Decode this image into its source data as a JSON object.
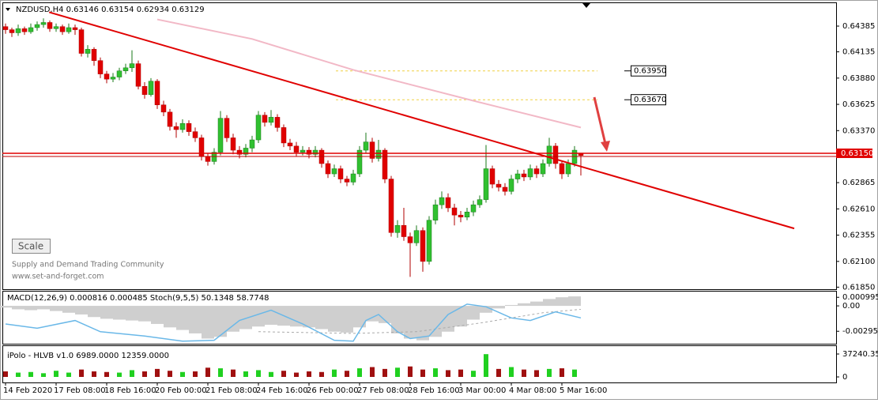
{
  "chart_data": {
    "type": "candlestick",
    "title": "NZDUSD,H4  0.63146 0.63154 0.62934 0.63129",
    "up_color": "#30c030",
    "down_color": "#e00000",
    "xlim": [
      -0.5,
      131.375
    ],
    "xticks": [
      {
        "value": 0,
        "label": "14 Feb 2020"
      },
      {
        "value": 8,
        "label": "17 Feb 08:00"
      },
      {
        "value": 16,
        "label": "18 Feb 16:00"
      },
      {
        "value": 24,
        "label": "20 Feb 00:00"
      },
      {
        "value": 32,
        "label": "21 Feb 08:00"
      },
      {
        "value": 40,
        "label": "24 Feb 16:00"
      },
      {
        "value": 48,
        "label": "26 Feb 00:00"
      },
      {
        "value": 56,
        "label": "27 Feb 08:00"
      },
      {
        "value": 64,
        "label": "28 Feb 16:00"
      },
      {
        "value": 72,
        "label": "3 Mar 00:00"
      },
      {
        "value": 80,
        "label": "4 Mar 08:00"
      },
      {
        "value": 88,
        "label": "5 Mar 16:00"
      }
    ],
    "ylim": [
      0.6183,
      0.646
    ],
    "yticks": [
      0.64385,
      0.64135,
      {
        "value": 0.6388,
        "label": "0.63880"
      },
      0.63625,
      {
        "value": 0.6337,
        "label": "0.63370"
      },
      0.62865,
      {
        "value": 0.6261,
        "label": "0.62610"
      },
      0.62355,
      {
        "value": 0.621,
        "label": "0.62100"
      },
      {
        "value": 0.6185,
        "label": "0.61850"
      }
    ],
    "candles": [
      [
        0.6438,
        0.6441,
        0.6431,
        0.6435
      ],
      [
        0.6435,
        0.6437,
        0.6428,
        0.6432
      ],
      [
        0.6432,
        0.644,
        0.6429,
        0.6436
      ],
      [
        0.6436,
        0.6438,
        0.643,
        0.6433
      ],
      [
        0.6433,
        0.6441,
        0.6431,
        0.6437
      ],
      [
        0.6437,
        0.6443,
        0.6434,
        0.644
      ],
      [
        0.644,
        0.6446,
        0.6437,
        0.6442
      ],
      [
        0.6442,
        0.6444,
        0.6433,
        0.6436
      ],
      [
        0.6436,
        0.6441,
        0.6433,
        0.6438
      ],
      [
        0.6438,
        0.644,
        0.643,
        0.6433
      ],
      [
        0.6433,
        0.6441,
        0.6431,
        0.6437
      ],
      [
        0.6437,
        0.644,
        0.643,
        0.6435
      ],
      [
        0.6435,
        0.6437,
        0.6409,
        0.6412
      ],
      [
        0.6412,
        0.642,
        0.6408,
        0.6416
      ],
      [
        0.6416,
        0.6418,
        0.64,
        0.6405
      ],
      [
        0.6405,
        0.6408,
        0.6388,
        0.6392
      ],
      [
        0.6392,
        0.6395,
        0.6383,
        0.6387
      ],
      [
        0.6387,
        0.6393,
        0.6384,
        0.6389
      ],
      [
        0.6389,
        0.6398,
        0.6386,
        0.6395
      ],
      [
        0.6395,
        0.6402,
        0.6392,
        0.6398
      ],
      [
        0.6398,
        0.6415,
        0.6394,
        0.6402
      ],
      [
        0.6402,
        0.6405,
        0.6377,
        0.638
      ],
      [
        0.638,
        0.6384,
        0.6368,
        0.6372
      ],
      [
        0.6372,
        0.6388,
        0.637,
        0.6385
      ],
      [
        0.6385,
        0.6387,
        0.6358,
        0.6362
      ],
      [
        0.6362,
        0.6366,
        0.6351,
        0.6355
      ],
      [
        0.6355,
        0.6358,
        0.6337,
        0.6341
      ],
      [
        0.6341,
        0.6345,
        0.633,
        0.6338
      ],
      [
        0.6338,
        0.6348,
        0.6335,
        0.6344
      ],
      [
        0.6344,
        0.6347,
        0.6332,
        0.6336
      ],
      [
        0.6336,
        0.634,
        0.6326,
        0.633
      ],
      [
        0.633,
        0.6333,
        0.6308,
        0.6312
      ],
      [
        0.6312,
        0.6315,
        0.6303,
        0.6307
      ],
      [
        0.6307,
        0.632,
        0.6304,
        0.6316
      ],
      [
        0.6316,
        0.6356,
        0.6313,
        0.6349
      ],
      [
        0.6349,
        0.6352,
        0.6326,
        0.633
      ],
      [
        0.633,
        0.6334,
        0.6314,
        0.6318
      ],
      [
        0.6318,
        0.6322,
        0.631,
        0.6314
      ],
      [
        0.6314,
        0.6324,
        0.6311,
        0.632
      ],
      [
        0.632,
        0.6332,
        0.6316,
        0.6328
      ],
      [
        0.6328,
        0.6356,
        0.6325,
        0.6352
      ],
      [
        0.6352,
        0.6355,
        0.6341,
        0.6345
      ],
      [
        0.6345,
        0.6357,
        0.6342,
        0.635
      ],
      [
        0.635,
        0.6353,
        0.6336,
        0.634
      ],
      [
        0.634,
        0.6343,
        0.6321,
        0.6325
      ],
      [
        0.6325,
        0.6329,
        0.6318,
        0.6322
      ],
      [
        0.6322,
        0.6326,
        0.6312,
        0.6316
      ],
      [
        0.6316,
        0.6322,
        0.6313,
        0.6318
      ],
      [
        0.6318,
        0.6321,
        0.631,
        0.6314
      ],
      [
        0.6314,
        0.6322,
        0.6311,
        0.6318
      ],
      [
        0.6318,
        0.632,
        0.6301,
        0.6305
      ],
      [
        0.6305,
        0.6308,
        0.6291,
        0.6295
      ],
      [
        0.6295,
        0.6304,
        0.6292,
        0.63
      ],
      [
        0.63,
        0.6303,
        0.6286,
        0.629
      ],
      [
        0.629,
        0.6293,
        0.6283,
        0.6287
      ],
      [
        0.6287,
        0.6299,
        0.6284,
        0.6295
      ],
      [
        0.6295,
        0.6322,
        0.6292,
        0.6318
      ],
      [
        0.6318,
        0.6335,
        0.6315,
        0.6326
      ],
      [
        0.6326,
        0.633,
        0.6306,
        0.631
      ],
      [
        0.631,
        0.6328,
        0.6307,
        0.6318
      ],
      [
        0.6318,
        0.632,
        0.6286,
        0.629
      ],
      [
        0.629,
        0.6293,
        0.6234,
        0.6238
      ],
      [
        0.6238,
        0.625,
        0.6233,
        0.6245
      ],
      [
        0.6245,
        0.6262,
        0.623,
        0.6234
      ],
      [
        0.6234,
        0.6238,
        0.6195,
        0.6228
      ],
      [
        0.6228,
        0.6245,
        0.6225,
        0.624
      ],
      [
        0.624,
        0.6243,
        0.62,
        0.621
      ],
      [
        0.621,
        0.6254,
        0.6207,
        0.625
      ],
      [
        0.625,
        0.627,
        0.6246,
        0.6265
      ],
      [
        0.6265,
        0.6278,
        0.6261,
        0.6272
      ],
      [
        0.6272,
        0.6276,
        0.6258,
        0.6262
      ],
      [
        0.6262,
        0.6266,
        0.6245,
        0.6255
      ],
      [
        0.6255,
        0.6259,
        0.6248,
        0.6253
      ],
      [
        0.6253,
        0.6262,
        0.625,
        0.6258
      ],
      [
        0.6258,
        0.6269,
        0.6254,
        0.6265
      ],
      [
        0.6265,
        0.6274,
        0.6262,
        0.627
      ],
      [
        0.627,
        0.6323,
        0.6267,
        0.63
      ],
      [
        0.63,
        0.6303,
        0.6281,
        0.6285
      ],
      [
        0.6285,
        0.6289,
        0.6278,
        0.6282
      ],
      [
        0.6282,
        0.6286,
        0.6274,
        0.6278
      ],
      [
        0.6278,
        0.6294,
        0.6275,
        0.629
      ],
      [
        0.629,
        0.6299,
        0.6286,
        0.6295
      ],
      [
        0.6295,
        0.6299,
        0.6288,
        0.6292
      ],
      [
        0.6292,
        0.6304,
        0.6289,
        0.63
      ],
      [
        0.63,
        0.6303,
        0.6291,
        0.6295
      ],
      [
        0.6295,
        0.6309,
        0.6292,
        0.6305
      ],
      [
        0.6305,
        0.633,
        0.6302,
        0.6322
      ],
      [
        0.6322,
        0.6325,
        0.63,
        0.6305
      ],
      [
        0.6305,
        0.6308,
        0.629,
        0.6295
      ],
      [
        0.6295,
        0.6309,
        0.6292,
        0.6305
      ],
      [
        0.6305,
        0.6322,
        0.6302,
        0.6318
      ],
      [
        0.63146,
        0.63154,
        0.62934,
        0.63129
      ]
    ],
    "ma": {
      "color": "#f2b8c6",
      "x": [
        24,
        39,
        55,
        74,
        91
      ],
      "values": [
        0.6445,
        0.6426,
        0.6396,
        0.6366,
        0.634
      ]
    },
    "trendline": {
      "color": "#e00000",
      "x": [
        6.9,
        124.75
      ],
      "values": [
        0.6452,
        0.6242
      ]
    },
    "levels": [
      {
        "value": 0.6395,
        "label": "0.63950"
      },
      {
        "value": 0.6367,
        "label": "0.63670"
      }
    ],
    "price_line": {
      "value": 0.6315,
      "label": "0.63150"
    },
    "watermark": {
      "button": "Scale",
      "line1": "Supply and Demand Trading Community",
      "line2": "www.set-and-forget.com"
    },
    "macd": {
      "title": "MACD(12,26,9) 0.000816 0.000485  Stoch(9,5,5) 50.1348 58.7748",
      "ylim": [
        -0.0044,
        0.00166
      ],
      "yticks": [
        0.000995,
        {
          "value": 0,
          "label": "0.00"
        },
        -0.002952
      ],
      "hist_color": "#cfcfcf",
      "hist_x": [
        0,
        2,
        4,
        6,
        8,
        10,
        12,
        14,
        16,
        18,
        20,
        22,
        24,
        26,
        28,
        30,
        32,
        34,
        36,
        38,
        40,
        42,
        44,
        46,
        48,
        50,
        52,
        54,
        56,
        58,
        60,
        62,
        64,
        66,
        68,
        70,
        72,
        74,
        76,
        78,
        80,
        82,
        84,
        86,
        88,
        90
      ],
      "hist": [
        -0.0002,
        -0.0004,
        -0.0005,
        -0.0004,
        -0.0006,
        -0.0008,
        -0.001,
        -0.0013,
        -0.0015,
        -0.0016,
        -0.0017,
        -0.0018,
        -0.0021,
        -0.0025,
        -0.0028,
        -0.0032,
        -0.0038,
        -0.0036,
        -0.003,
        -0.0027,
        -0.0024,
        -0.0022,
        -0.0023,
        -0.0024,
        -0.0025,
        -0.0027,
        -0.003,
        -0.0031,
        -0.0025,
        -0.0018,
        -0.002,
        -0.0032,
        -0.0038,
        -0.004,
        -0.0036,
        -0.003,
        -0.0024,
        -0.0016,
        -0.0008,
        -0.0003,
        0.0001,
        0.0003,
        0.0005,
        0.0008,
        0.001,
        0.0011
      ],
      "line_color": "#6ab8e8",
      "line_x": [
        0,
        5,
        11,
        15,
        22,
        28,
        33,
        37,
        42,
        47,
        52,
        55,
        57,
        59,
        62,
        64,
        67,
        70,
        73,
        76,
        80,
        83,
        87,
        91
      ],
      "line": [
        -0.0021,
        -0.0026,
        -0.0017,
        -0.003,
        -0.0035,
        -0.0041,
        -0.004,
        -0.0017,
        -0.0005,
        -0.0021,
        -0.004,
        -0.0041,
        -0.0017,
        -0.001,
        -0.003,
        -0.0038,
        -0.0035,
        -0.001,
        0.0002,
        -0.0001,
        -0.0014,
        -0.0017,
        -0.0007,
        -0.0014
      ],
      "signal_color": "#aaaaaa",
      "signal_x": [
        40,
        55,
        65,
        75,
        85,
        91
      ],
      "signal": [
        -0.003,
        -0.0032,
        -0.003,
        -0.002,
        -0.0008,
        -0.0004
      ]
    },
    "volume": {
      "title": "iPolo - HLVB v1.0 6989.0000 12359.0000",
      "ylim": [
        -8990,
        50080
      ],
      "yticks": [
        37240.35,
        0
      ],
      "x": [
        0,
        2,
        4,
        6,
        8,
        10,
        12,
        14,
        16,
        18,
        20,
        22,
        24,
        26,
        28,
        30,
        32,
        34,
        36,
        38,
        40,
        42,
        44,
        46,
        48,
        50,
        52,
        54,
        56,
        58,
        60,
        62,
        64,
        66,
        68,
        70,
        72,
        74,
        76,
        78,
        80,
        82,
        84,
        86,
        88,
        90
      ],
      "values": [
        9000,
        7000,
        8000,
        6000,
        10000,
        7000,
        12000,
        9000,
        8000,
        7000,
        11000,
        9000,
        13000,
        10000,
        8000,
        9000,
        15000,
        14000,
        12000,
        9000,
        11000,
        8000,
        10000,
        7000,
        9000,
        8000,
        12000,
        10000,
        14000,
        16000,
        13000,
        15000,
        17000,
        12000,
        14000,
        11000,
        12000,
        10000,
        37000,
        13000,
        16000,
        12000,
        11000,
        13000,
        14000,
        12000
      ]
    }
  }
}
